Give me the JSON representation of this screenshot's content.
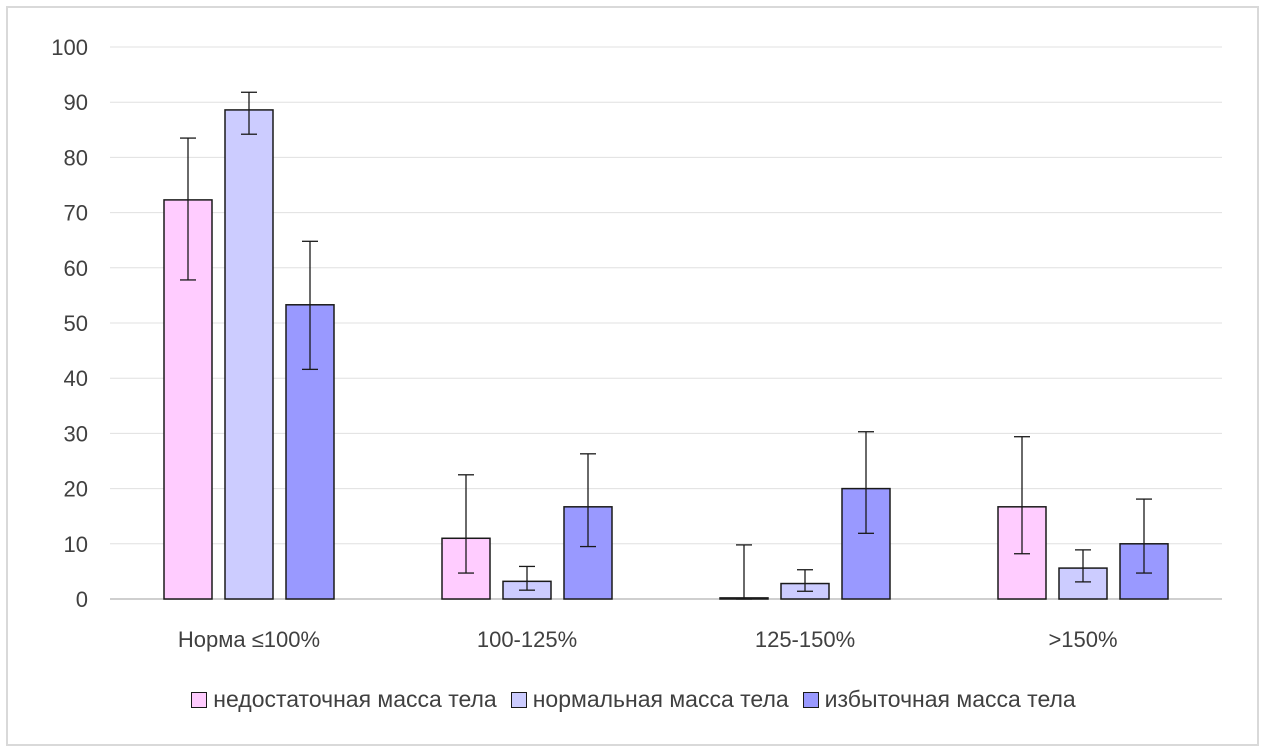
{
  "chart_data": {
    "type": "bar",
    "categories": [
      "Норма ≤100%",
      "100-125%",
      "125-150%",
      ">150%"
    ],
    "series": [
      {
        "name": "недостаточная масса тела",
        "color": "#ffccff",
        "values": [
          72.3,
          11.0,
          0.2,
          16.7
        ],
        "error_low": [
          57.8,
          4.7,
          0.0,
          8.2
        ],
        "error_high": [
          83.5,
          22.5,
          9.8,
          29.4
        ]
      },
      {
        "name": "нормальная масса тела",
        "color": "#ccccff",
        "values": [
          88.6,
          3.2,
          2.8,
          5.6
        ],
        "error_low": [
          84.2,
          1.6,
          1.4,
          3.1
        ],
        "error_high": [
          91.8,
          5.9,
          5.3,
          8.9
        ]
      },
      {
        "name": "избыточная масса тела",
        "color": "#9999ff",
        "values": [
          53.3,
          16.7,
          20.0,
          10.0
        ],
        "error_low": [
          41.6,
          9.5,
          11.9,
          4.7
        ],
        "error_high": [
          64.8,
          26.3,
          30.3,
          18.1
        ]
      }
    ],
    "ylim": [
      0,
      100
    ],
    "yticks": [
      0,
      10,
      20,
      30,
      40,
      50,
      60,
      70,
      80,
      90,
      100
    ],
    "grid": true,
    "legend_position": "bottom"
  }
}
